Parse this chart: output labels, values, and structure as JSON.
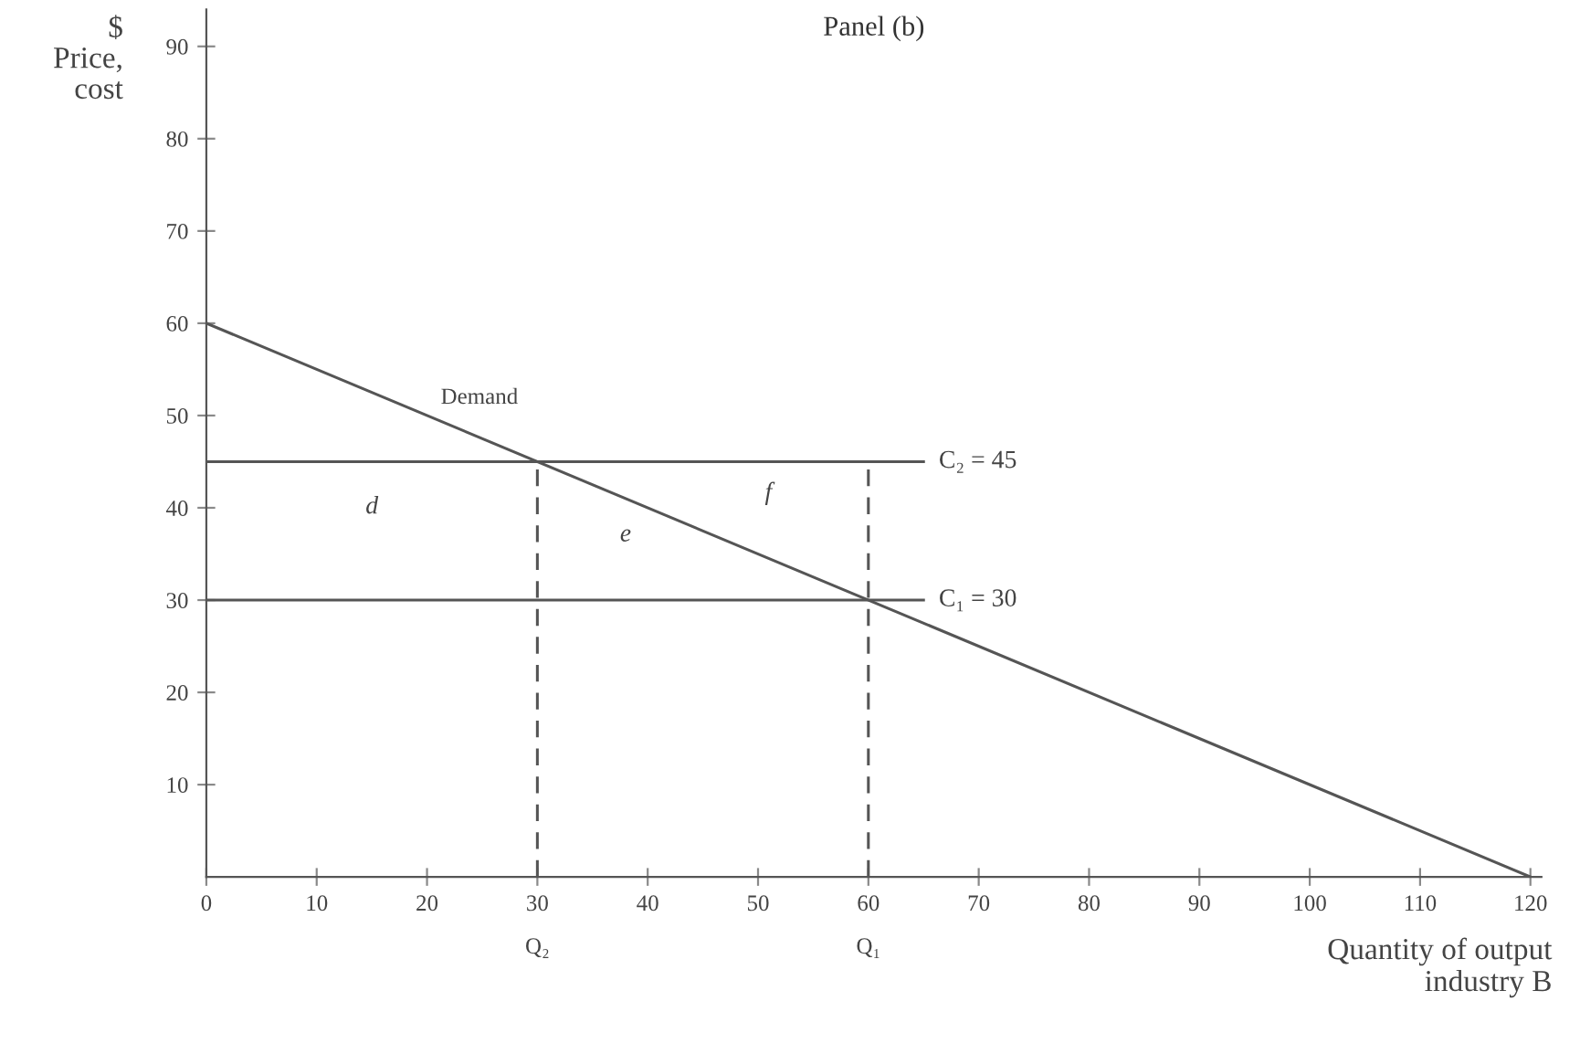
{
  "chart_data": {
    "type": "line",
    "title": "Panel (b)",
    "xlabel": "Quantity of output\nindustry B",
    "ylabel": "$\nPrice,\ncost",
    "series": [
      {
        "name": "Demand",
        "color": "#555555",
        "x": [
          0,
          120
        ],
        "values": [
          60,
          0
        ]
      },
      {
        "name": "C₂ = 45",
        "color": "#555555",
        "x": [
          0,
          65
        ],
        "values": [
          45,
          45
        ]
      },
      {
        "name": "C₁ = 30",
        "color": "#555555",
        "x": [
          0,
          65
        ],
        "values": [
          30,
          30
        ]
      },
      {
        "color": "#555555",
        "x": [
          30,
          30
        ],
        "values": [
          0,
          45
        ],
        "line_style": "dashed"
      },
      {
        "color": "#555555",
        "x": [
          60,
          60
        ],
        "values": [
          0,
          45
        ],
        "line_style": "dashed"
      }
    ],
    "annotations": [
      {
        "text": "Q₂",
        "x": 30,
        "y": 0
      },
      {
        "text": "Q₁",
        "x": 60,
        "y": 0
      },
      "d",
      "e",
      "f"
    ],
    "xlim": [
      0,
      121
    ],
    "ylim": [
      0,
      94
    ],
    "xticks": [
      0,
      10,
      20,
      30,
      40,
      50,
      60,
      70,
      80,
      90,
      100,
      110,
      120
    ],
    "yticks": [
      10,
      20,
      30,
      40,
      50,
      60,
      70,
      80,
      90
    ],
    "grid": false,
    "legend": false,
    "marker": "none",
    "line_style": "solid"
  }
}
